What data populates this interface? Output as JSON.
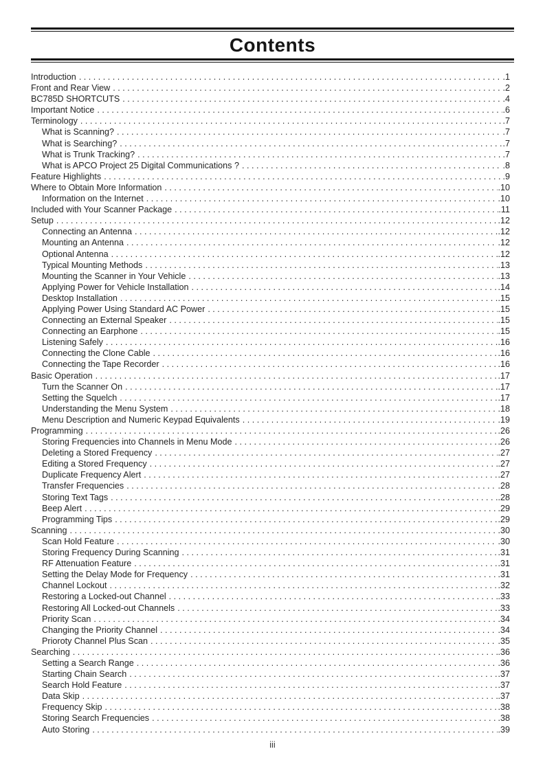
{
  "page": {
    "title": "Contents",
    "footer": "iii"
  },
  "toc": {
    "entries": [
      {
        "label": "Introduction",
        "page": "1",
        "level": 0
      },
      {
        "label": "Front and Rear View",
        "page": "2",
        "level": 0
      },
      {
        "label": "BC785D SHORTCUTS",
        "page": "4",
        "level": 0
      },
      {
        "label": "Important Notice",
        "page": "6",
        "level": 0
      },
      {
        "label": "Terminology",
        "page": "7",
        "level": 0
      },
      {
        "label": "What is Scanning?",
        "page": "7",
        "level": 1
      },
      {
        "label": "What is Searching?",
        "page": "7",
        "level": 1
      },
      {
        "label": "What is Trunk Tracking?",
        "page": "7",
        "level": 1
      },
      {
        "label": "What is APCO Project 25 Digital Communications ?",
        "page": "8",
        "level": 1
      },
      {
        "label": "Feature Highlights",
        "page": "9",
        "level": 0
      },
      {
        "label": "Where to Obtain More Information",
        "page": "10",
        "level": 0
      },
      {
        "label": "Information on the Internet",
        "page": "10",
        "level": 1
      },
      {
        "label": "Included with Your Scanner Package",
        "page": "11",
        "level": 0
      },
      {
        "label": "Setup",
        "page": "12",
        "level": 0
      },
      {
        "label": "Connecting an Antenna",
        "page": "12",
        "level": 1
      },
      {
        "label": "Mounting an Antenna",
        "page": "12",
        "level": 1
      },
      {
        "label": "Optional Antenna",
        "page": "12",
        "level": 1
      },
      {
        "label": "Typical Mounting Methods",
        "page": "13",
        "level": 1
      },
      {
        "label": "Mounting the Scanner in Your Vehicle",
        "page": "13",
        "level": 1
      },
      {
        "label": "Applying Power for Vehicle Installation",
        "page": "14",
        "level": 1
      },
      {
        "label": "Desktop Installation",
        "page": "15",
        "level": 1
      },
      {
        "label": "Applying Power Using Standard AC Power",
        "page": "15",
        "level": 1
      },
      {
        "label": "Connecting an External Speaker",
        "page": "15",
        "level": 1
      },
      {
        "label": "Connecting an Earphone",
        "page": "15",
        "level": 1
      },
      {
        "label": "Listening Safely",
        "page": "16",
        "level": 1
      },
      {
        "label": "Connecting the Clone Cable",
        "page": "16",
        "level": 1
      },
      {
        "label": "Connecting the Tape Recorder",
        "page": "16",
        "level": 1
      },
      {
        "label": "Basic Operation",
        "page": "17",
        "level": 0
      },
      {
        "label": "Turn the Scanner On",
        "page": "17",
        "level": 1
      },
      {
        "label": "Setting the Squelch",
        "page": "17",
        "level": 1
      },
      {
        "label": "Understanding the Menu System",
        "page": "18",
        "level": 1
      },
      {
        "label": "Menu Description and Numeric Keypad Equivalents",
        "page": "19",
        "level": 1
      },
      {
        "label": "Programming",
        "page": "26",
        "level": 0
      },
      {
        "label": "Storing Frequencies into Channels in Menu Mode",
        "page": "26",
        "level": 1
      },
      {
        "label": "Deleting a Stored Frequency",
        "page": "27",
        "level": 1
      },
      {
        "label": "Editing a Stored Frequency",
        "page": "27",
        "level": 1
      },
      {
        "label": "Duplicate Frequency Alert",
        "page": "27",
        "level": 1
      },
      {
        "label": "Transfer Frequencies",
        "page": "28",
        "level": 1
      },
      {
        "label": "Storing Text Tags",
        "page": "28",
        "level": 1
      },
      {
        "label": "Beep Alert",
        "page": "29",
        "level": 1
      },
      {
        "label": "Programming Tips",
        "page": "29",
        "level": 1
      },
      {
        "label": "Scanning",
        "page": "30",
        "level": 0
      },
      {
        "label": "Scan Hold Feature",
        "page": "30",
        "level": 1
      },
      {
        "label": "Storing Frequency During Scanning",
        "page": "31",
        "level": 1
      },
      {
        "label": "RF Attenuation Feature",
        "page": "31",
        "level": 1
      },
      {
        "label": "Setting the Delay Mode for Frequency",
        "page": "31",
        "level": 1
      },
      {
        "label": "Channel Lockout",
        "page": "32",
        "level": 1
      },
      {
        "label": "Restoring a Locked-out Channel",
        "page": "33",
        "level": 1
      },
      {
        "label": "Restoring All Locked-out Channels",
        "page": "33",
        "level": 1
      },
      {
        "label": "Priority Scan",
        "page": "34",
        "level": 1
      },
      {
        "label": "Changing the Priority Channel",
        "page": "34",
        "level": 1
      },
      {
        "label": "Prioroty Channel Plus Scan",
        "page": "35",
        "level": 1
      },
      {
        "label": "Searching",
        "page": "36",
        "level": 0
      },
      {
        "label": "Setting a Search Range",
        "page": "36",
        "level": 1
      },
      {
        "label": "Starting Chain Search",
        "page": "37",
        "level": 1
      },
      {
        "label": "Search Hold Feature",
        "page": "37",
        "level": 1
      },
      {
        "label": "Data Skip",
        "page": "37",
        "level": 1
      },
      {
        "label": "Frequency Skip",
        "page": "38",
        "level": 1
      },
      {
        "label": "Storing Search Frequencies",
        "page": "38",
        "level": 1
      },
      {
        "label": "Auto Storing",
        "page": "39",
        "level": 1
      }
    ]
  }
}
